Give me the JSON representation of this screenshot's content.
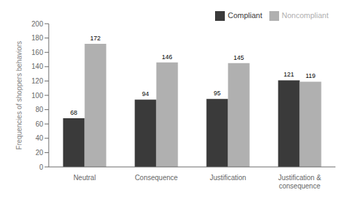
{
  "chart_data": {
    "type": "bar",
    "categories": [
      "Neutral",
      "Consequence",
      "Justification",
      "Justification & consequence"
    ],
    "series": [
      {
        "name": "Compliant",
        "color": "#3a3a3a",
        "values": [
          68,
          94,
          95,
          121
        ]
      },
      {
        "name": "Noncompliant",
        "color": "#b0b0b0",
        "values": [
          172,
          146,
          145,
          119
        ]
      }
    ],
    "y_label": "Frequencies of shoppers behaviors",
    "ylim": [
      0,
      200
    ],
    "yticks": [
      0,
      20,
      40,
      60,
      80,
      100,
      120,
      140,
      160,
      180,
      200
    ],
    "grid": false,
    "legend": "upper right",
    "data_labels": true
  }
}
